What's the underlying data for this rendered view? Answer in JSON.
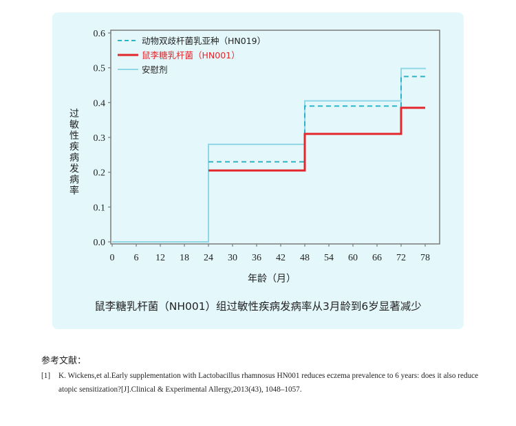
{
  "chart_data": {
    "type": "line",
    "step": true,
    "xlabel": "年龄（月）",
    "ylabel": "过敏性疾病发病率",
    "xlim": [
      0,
      78
    ],
    "ylim": [
      0,
      0.6
    ],
    "x_ticks": [
      0,
      6,
      12,
      18,
      24,
      30,
      36,
      42,
      48,
      54,
      60,
      66,
      72,
      78
    ],
    "y_ticks": [
      "0.0",
      "0.1",
      "0.2",
      "0.3",
      "0.4",
      "0.5",
      "0.6"
    ],
    "legend_position": "top-left",
    "series": [
      {
        "name": "动物双歧杆菌乳亚种（HN019）",
        "color": "#29b3c6",
        "style": "dashed",
        "x": [
          24,
          48,
          72,
          78
        ],
        "y": [
          0.23,
          0.39,
          0.475,
          0.475
        ]
      },
      {
        "name": "鼠李糖乳杆菌（HN001）",
        "color": "#e3262b",
        "style": "solid-bold",
        "x": [
          24,
          48,
          72,
          78
        ],
        "y": [
          0.205,
          0.31,
          0.385,
          0.385
        ]
      },
      {
        "name": "安慰剂",
        "color": "#8fd6e6",
        "style": "solid",
        "x": [
          0,
          24,
          48,
          72,
          78
        ],
        "y": [
          0.0,
          0.28,
          0.405,
          0.498,
          0.5
        ]
      }
    ]
  },
  "caption": "鼠李糖乳杆菌（NH001）组过敏性疾病发病率从3月龄到6岁显著减少",
  "references": {
    "title": "参考文献：",
    "items": [
      {
        "num": "[1]",
        "text": "K. Wickens,et al.Early supplementation with Lactobacillus rhamnosus HN001 reduces eczema prevalence to 6 years: does it also  reduce atopic sensitization?[J].Clinical & Experimental Allergy,2013(43), 1048–1057."
      }
    ]
  }
}
